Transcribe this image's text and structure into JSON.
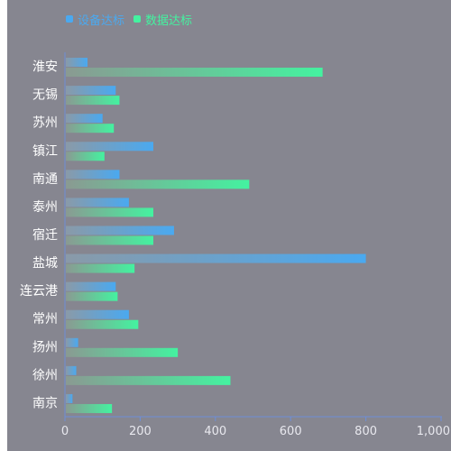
{
  "chart_data": {
    "type": "bar",
    "orientation": "horizontal",
    "categories": [
      "淮安",
      "无锡",
      "苏州",
      "镇江",
      "南通",
      "泰州",
      "宿迁",
      "盐城",
      "连云港",
      "常州",
      "扬州",
      "徐州",
      "南京"
    ],
    "series": [
      {
        "name": "设备达标",
        "values": [
          60,
          135,
          100,
          235,
          145,
          170,
          290,
          800,
          135,
          170,
          35,
          30,
          20
        ],
        "color": "#4aa9f0"
      },
      {
        "name": "数据达标",
        "values": [
          685,
          145,
          130,
          105,
          490,
          235,
          235,
          185,
          140,
          195,
          300,
          440,
          125
        ],
        "color": "#44f2a0"
      }
    ],
    "xlim": [
      0,
      1000
    ],
    "xticks": [
      0,
      200,
      400,
      600,
      800,
      1000
    ],
    "xtick_labels": [
      "0",
      "200",
      "400",
      "600",
      "800",
      "1,000"
    ],
    "legend_position": "top-left",
    "grid": false
  }
}
